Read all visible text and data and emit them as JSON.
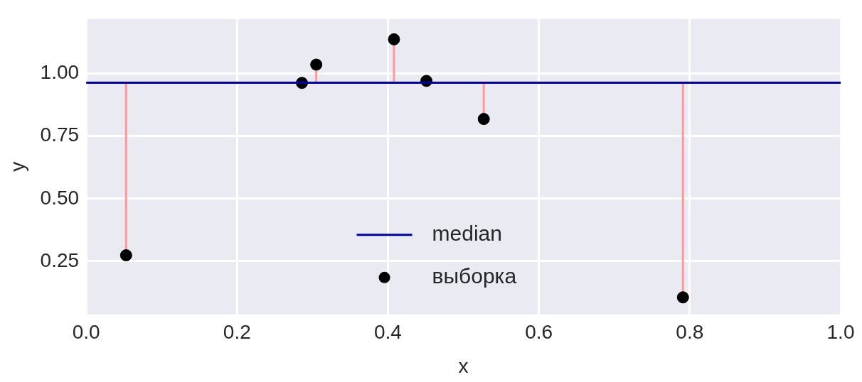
{
  "chart_data": {
    "type": "scatter",
    "xlabel": "x",
    "ylabel": "y",
    "xlim": [
      0,
      1
    ],
    "ylim": [
      0.038,
      1.217
    ],
    "xticks": [
      {
        "value": 0,
        "label": "0.0"
      },
      {
        "value": 0.2,
        "label": "0.2"
      },
      {
        "value": 0.4,
        "label": "0.4"
      },
      {
        "value": 0.6,
        "label": "0.6"
      },
      {
        "value": 0.8,
        "label": "0.8"
      },
      {
        "value": 1,
        "label": "1.0"
      }
    ],
    "yticks": [
      {
        "value": 0.25,
        "label": "0.25"
      },
      {
        "value": 0.5,
        "label": "0.50"
      },
      {
        "value": 0.75,
        "label": "0.75"
      },
      {
        "value": 1,
        "label": "1.00"
      }
    ],
    "grid": true,
    "legend": "bottom",
    "series": [
      {
        "name": "median",
        "type": "line",
        "marker": "none",
        "color": "#0000aa",
        "x": [
          0,
          1
        ],
        "values": [
          0.963,
          0.963
        ]
      },
      {
        "name": "выборка",
        "marker": "circle",
        "color": "#000000",
        "x": [
          0.053,
          0.286,
          0.305,
          0.408,
          0.451,
          0.527,
          0.791
        ],
        "values": [
          0.274,
          0.962,
          1.035,
          1.136,
          0.97,
          0.818,
          0.106
        ],
        "errors": [
          [
            0.274,
            0.963
          ],
          null,
          [
            0.963,
            1.035
          ],
          [
            0.963,
            1.136
          ],
          null,
          [
            0.818,
            0.963
          ],
          [
            0.106,
            0.963
          ]
        ]
      }
    ]
  }
}
